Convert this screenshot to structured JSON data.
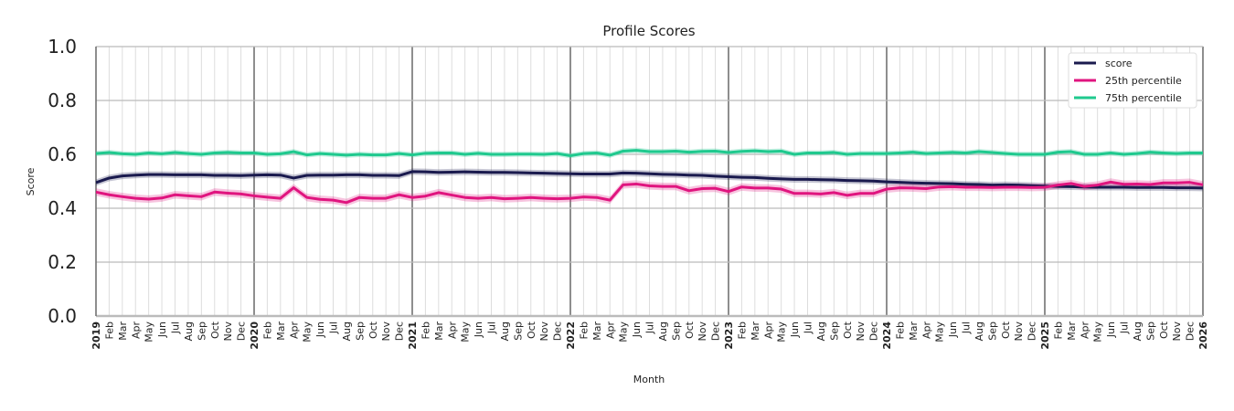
{
  "chart_data": {
    "type": "line",
    "title": "Profile Scores",
    "xlabel": "Month",
    "ylabel": "Score",
    "ylim": [
      0,
      1
    ],
    "yticks": [
      "0.0",
      "0.2",
      "0.4",
      "0.6",
      "0.8",
      "1.0"
    ],
    "grid": true,
    "legend_position": "top-right",
    "categories": [
      "2019",
      "Feb",
      "Mar",
      "Apr",
      "May",
      "Jun",
      "Jul",
      "Aug",
      "Sep",
      "Oct",
      "Nov",
      "Dec",
      "2020",
      "Feb",
      "Mar",
      "Apr",
      "May",
      "Jun",
      "Jul",
      "Aug",
      "Sep",
      "Oct",
      "Nov",
      "Dec",
      "2021",
      "Feb",
      "Mar",
      "Apr",
      "May",
      "Jun",
      "Jul",
      "Aug",
      "Sep",
      "Oct",
      "Nov",
      "Dec",
      "2022",
      "Feb",
      "Mar",
      "Apr",
      "May",
      "Jun",
      "Jul",
      "Aug",
      "Sep",
      "Oct",
      "Nov",
      "Dec",
      "2023",
      "Feb",
      "Mar",
      "Apr",
      "May",
      "Jun",
      "Jul",
      "Aug",
      "Sep",
      "Oct",
      "Nov",
      "Dec",
      "2024",
      "Feb",
      "Mar",
      "Apr",
      "May",
      "Jun",
      "Jul",
      "Aug",
      "Sep",
      "Oct",
      "Nov",
      "Dec",
      "2025",
      "Feb",
      "Mar",
      "Apr",
      "May",
      "Jun",
      "Jul",
      "Aug",
      "Sep",
      "Oct",
      "Nov",
      "Dec",
      "2026"
    ],
    "series": [
      {
        "name": "score",
        "color": "#1a1a4e",
        "band": 0.012,
        "values": [
          0.495,
          0.512,
          0.52,
          0.523,
          0.525,
          0.525,
          0.524,
          0.524,
          0.524,
          0.522,
          0.522,
          0.521,
          0.523,
          0.524,
          0.523,
          0.512,
          0.522,
          0.523,
          0.523,
          0.524,
          0.524,
          0.522,
          0.522,
          0.521,
          0.536,
          0.535,
          0.533,
          0.534,
          0.535,
          0.534,
          0.533,
          0.533,
          0.532,
          0.531,
          0.53,
          0.529,
          0.528,
          0.527,
          0.527,
          0.527,
          0.531,
          0.53,
          0.528,
          0.526,
          0.525,
          0.523,
          0.522,
          0.519,
          0.517,
          0.515,
          0.514,
          0.511,
          0.509,
          0.507,
          0.507,
          0.506,
          0.505,
          0.503,
          0.502,
          0.501,
          0.498,
          0.496,
          0.494,
          0.493,
          0.492,
          0.491,
          0.489,
          0.488,
          0.486,
          0.487,
          0.486,
          0.484,
          0.482,
          0.481,
          0.48,
          0.479,
          0.478,
          0.478,
          0.478,
          0.477,
          0.477,
          0.477,
          0.476,
          0.476,
          0.475
        ]
      },
      {
        "name": "25th percentile",
        "color": "#e0157f",
        "band": 0.014,
        "values": [
          0.46,
          0.45,
          0.443,
          0.437,
          0.434,
          0.438,
          0.45,
          0.446,
          0.443,
          0.46,
          0.456,
          0.453,
          0.446,
          0.441,
          0.437,
          0.476,
          0.44,
          0.433,
          0.43,
          0.421,
          0.44,
          0.437,
          0.437,
          0.45,
          0.44,
          0.445,
          0.458,
          0.449,
          0.44,
          0.437,
          0.44,
          0.435,
          0.437,
          0.44,
          0.437,
          0.435,
          0.437,
          0.442,
          0.44,
          0.43,
          0.487,
          0.49,
          0.483,
          0.481,
          0.481,
          0.465,
          0.473,
          0.474,
          0.462,
          0.479,
          0.475,
          0.475,
          0.471,
          0.455,
          0.455,
          0.453,
          0.458,
          0.448,
          0.455,
          0.455,
          0.471,
          0.476,
          0.475,
          0.473,
          0.479,
          0.48,
          0.478,
          0.478,
          0.477,
          0.478,
          0.478,
          0.477,
          0.478,
          0.486,
          0.492,
          0.481,
          0.486,
          0.497,
          0.489,
          0.49,
          0.488,
          0.494,
          0.494,
          0.496,
          0.487
        ]
      },
      {
        "name": "75th percentile",
        "color": "#1fc98e",
        "band": 0.01,
        "values": [
          0.603,
          0.607,
          0.602,
          0.6,
          0.605,
          0.602,
          0.607,
          0.603,
          0.6,
          0.605,
          0.607,
          0.605,
          0.605,
          0.6,
          0.602,
          0.61,
          0.598,
          0.603,
          0.6,
          0.597,
          0.6,
          0.598,
          0.598,
          0.603,
          0.598,
          0.604,
          0.605,
          0.605,
          0.6,
          0.604,
          0.6,
          0.6,
          0.601,
          0.601,
          0.6,
          0.603,
          0.595,
          0.603,
          0.605,
          0.597,
          0.612,
          0.615,
          0.61,
          0.61,
          0.612,
          0.608,
          0.611,
          0.612,
          0.607,
          0.611,
          0.613,
          0.61,
          0.612,
          0.6,
          0.605,
          0.605,
          0.607,
          0.6,
          0.603,
          0.603,
          0.603,
          0.605,
          0.608,
          0.603,
          0.605,
          0.607,
          0.605,
          0.61,
          0.607,
          0.603,
          0.6,
          0.6,
          0.6,
          0.608,
          0.61,
          0.6,
          0.6,
          0.605,
          0.6,
          0.603,
          0.608,
          0.605,
          0.603,
          0.605,
          0.605
        ]
      }
    ]
  }
}
